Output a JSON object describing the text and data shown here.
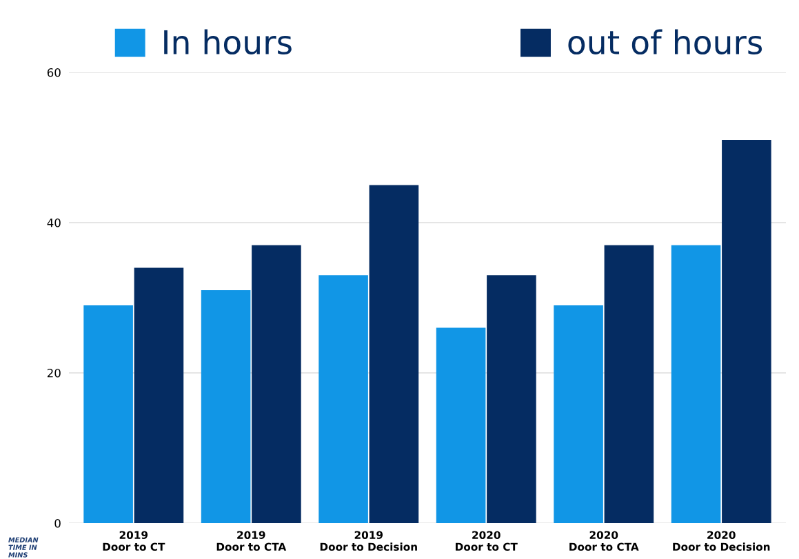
{
  "chart_data": {
    "type": "bar",
    "ylabel": "MEDIAN\nTIME IN\nMINS",
    "categories": [
      "2019\nDoor to CT",
      "2019\nDoor to CTA",
      "2019\nDoor to Decision",
      "2020\nDoor to CT",
      "2020\nDoor to CTA",
      "2020\nDoor to Decision"
    ],
    "series": [
      {
        "name": "In hours",
        "color": "#1196e6",
        "values": [
          29,
          31,
          33,
          26,
          29,
          37
        ]
      },
      {
        "name": "out of hours",
        "color": "#052c62",
        "values": [
          34,
          37,
          45,
          33,
          37,
          51
        ]
      }
    ],
    "ylim": [
      0,
      60
    ],
    "yticks": [
      0,
      20,
      40,
      60
    ],
    "grid": "y",
    "legend": "top"
  }
}
